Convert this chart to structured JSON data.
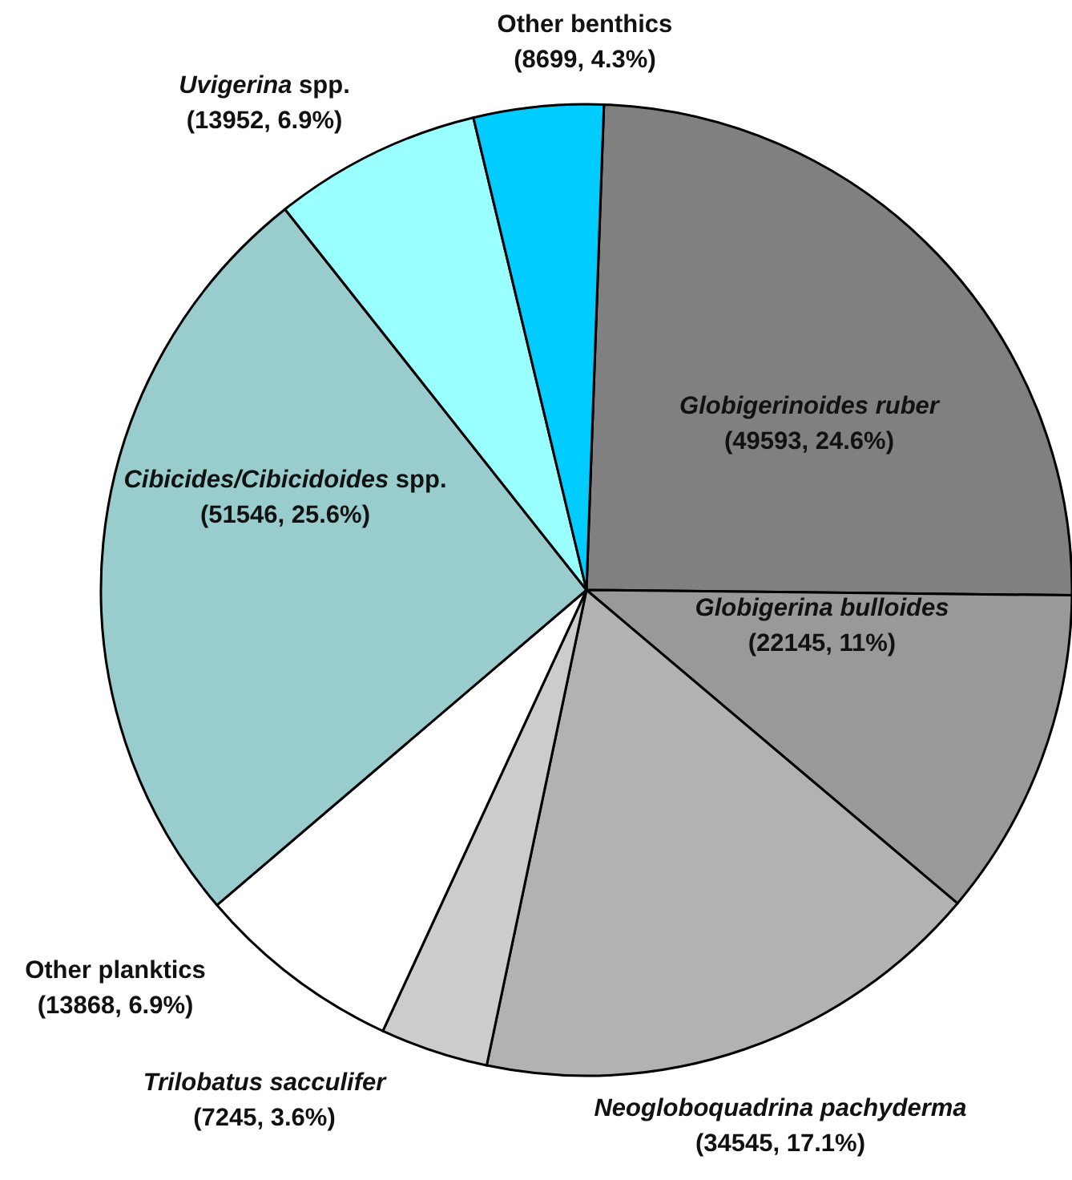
{
  "chart_data": {
    "type": "pie",
    "categories": [
      "Globigerinoides ruber",
      "Globigerina bulloides",
      "Neogloboquadrina pachyderma",
      "Trilobatus sacculifer",
      "Other planktics",
      "Cibicides/Cibicidoides spp.",
      "Uvigerina spp.",
      "Other benthics"
    ],
    "values": [
      49593,
      22145,
      34545,
      7245,
      13868,
      51546,
      13952,
      8699
    ],
    "value_labels": [
      "(49593, 24.6%)",
      "(22145, 11%)",
      "(34545, 17.1%)",
      "(7245, 3.6%)",
      "(13868, 6.9%)",
      "(51546, 25.6%)",
      "(13952, 6.9%)",
      "(8699, 4.3%)"
    ],
    "colors": [
      "#808080",
      "#999999",
      "#b2b2b2",
      "#cccccc",
      "#ffffff",
      "#99cccc",
      "#99ffff",
      "#00ccff"
    ]
  }
}
